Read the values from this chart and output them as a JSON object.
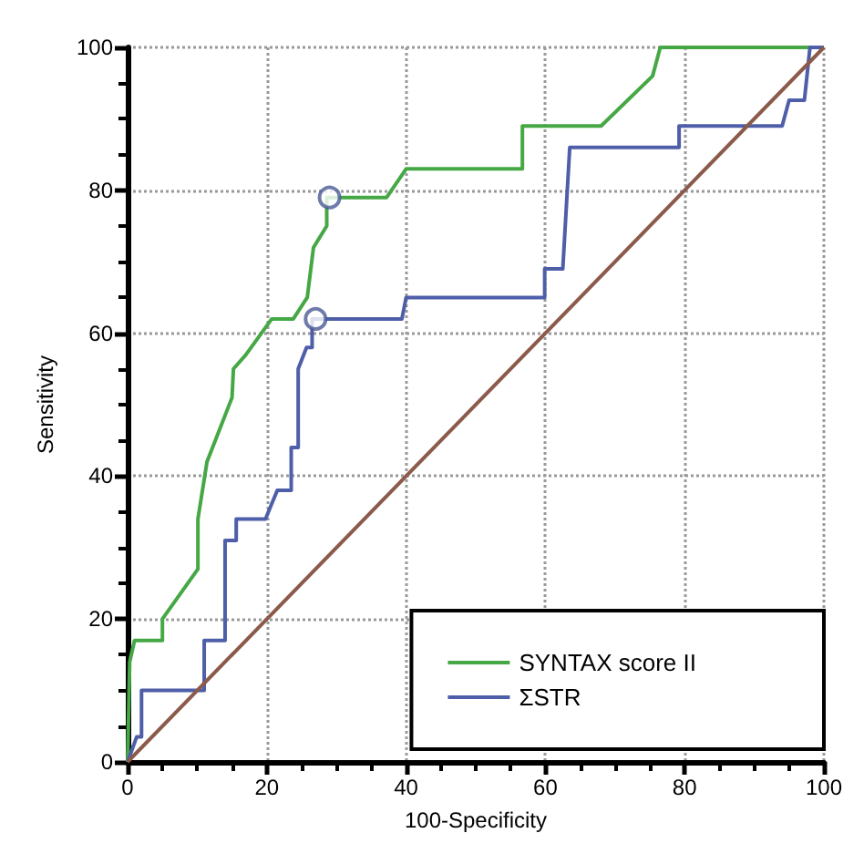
{
  "chart_data": {
    "type": "line",
    "xlabel": "100-Specificity",
    "ylabel": "Sensitivity",
    "xlim": [
      0,
      100
    ],
    "ylim": [
      0,
      100
    ],
    "xticks": [
      0,
      20,
      40,
      60,
      80,
      100
    ],
    "yticks": [
      0,
      20,
      40,
      60,
      80,
      100
    ],
    "grid": true,
    "legend": "bottom right",
    "marker": "none",
    "line_style": "solid",
    "series": [
      {
        "name": "SYNTAX score II",
        "color": "#45a845",
        "x": [
          0,
          0.3,
          1,
          5,
          5,
          10.1,
          10.1,
          11.4,
          15,
          15.2,
          17,
          20.7,
          23.8,
          25.8,
          25.8,
          26.7,
          28.6,
          28.6,
          29,
          37.2,
          40,
          56.7,
          56.7,
          68,
          75.4,
          76.5,
          100
        ],
        "values": [
          0,
          14,
          17,
          17,
          20,
          27,
          34,
          42,
          51,
          55,
          57,
          62,
          62,
          65,
          65,
          72,
          75,
          79,
          79,
          79,
          83,
          83,
          89,
          89,
          96,
          100,
          100
        ]
      },
      {
        "name": "ΣSTR",
        "color": "#4f5ea8",
        "x": [
          0,
          1.3,
          2,
          2,
          11,
          11,
          14,
          14,
          15.6,
          15.6,
          19.8,
          21.5,
          23.5,
          23.5,
          24.5,
          24.5,
          25.7,
          26.5,
          26.5,
          27,
          39.4,
          40,
          59.9,
          59.9,
          62.5,
          63.5,
          79.2,
          79.2,
          94,
          95,
          97.2,
          98,
          100
        ],
        "values": [
          0,
          3.5,
          3.5,
          10,
          10,
          17,
          17,
          31,
          31,
          34,
          34,
          38,
          38,
          44,
          44,
          55,
          58,
          58,
          62,
          62,
          62,
          65,
          65,
          69,
          69,
          86,
          86,
          89,
          89,
          92.6,
          92.6,
          100,
          100
        ]
      },
      {
        "type": "line",
        "color": "#8b5a4a",
        "x": [
          0,
          100
        ],
        "values": [
          0,
          100
        ]
      },
      {
        "type": "scatter",
        "marker": "circle",
        "color": "#4a5a96",
        "x": [
          29,
          27
        ],
        "values": [
          79,
          62
        ]
      }
    ]
  }
}
